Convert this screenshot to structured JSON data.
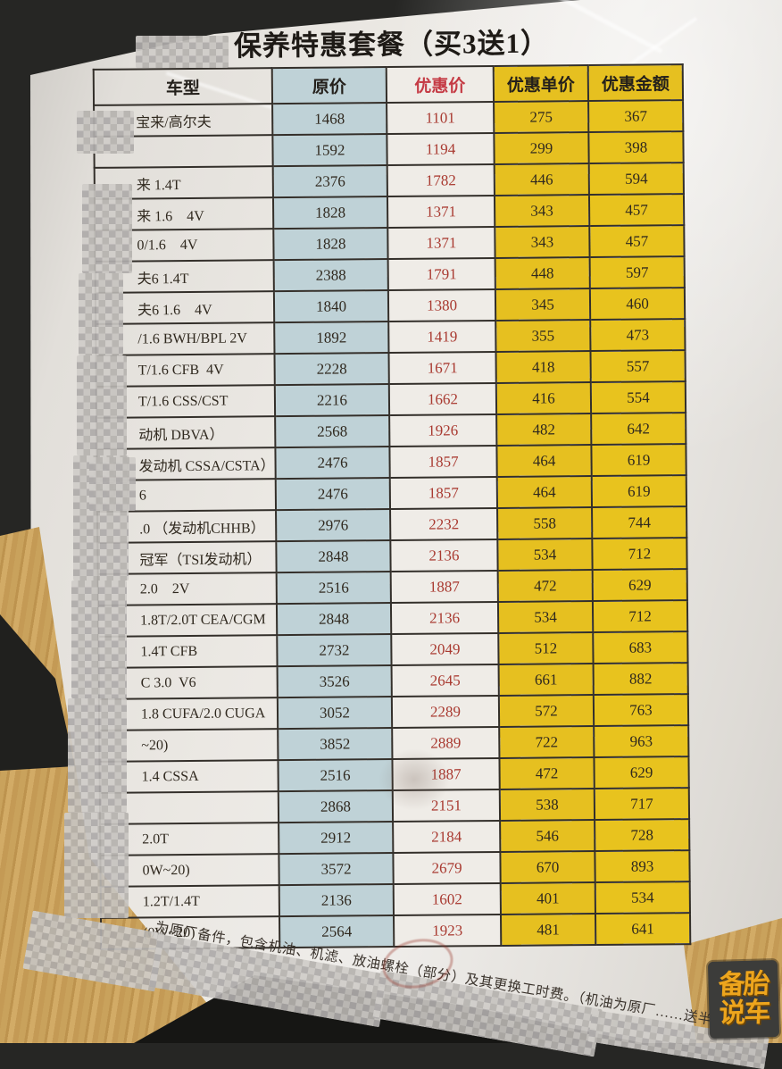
{
  "photo": {
    "title": "保养特惠套餐（买3送1）",
    "columns": [
      "车型",
      "原价",
      "优惠价",
      "优惠单价",
      "优惠金额"
    ],
    "rows": [
      {
        "model": "宝来/高尔夫",
        "orig": "1468",
        "promo": "1101",
        "unit": "275",
        "save": "367"
      },
      {
        "model": "",
        "orig": "1592",
        "promo": "1194",
        "unit": "299",
        "save": "398"
      },
      {
        "model": "来 1.4T",
        "orig": "2376",
        "promo": "1782",
        "unit": "446",
        "save": "594"
      },
      {
        "model": "来 1.6    4V",
        "orig": "1828",
        "promo": "1371",
        "unit": "343",
        "save": "457"
      },
      {
        "model": "0/1.6    4V",
        "orig": "1828",
        "promo": "1371",
        "unit": "343",
        "save": "457"
      },
      {
        "model": "夫6 1.4T",
        "orig": "2388",
        "promo": "1791",
        "unit": "448",
        "save": "597"
      },
      {
        "model": "夫6 1.6    4V",
        "orig": "1840",
        "promo": "1380",
        "unit": "345",
        "save": "460"
      },
      {
        "model": "/1.6 BWH/BPL 2V",
        "orig": "1892",
        "promo": "1419",
        "unit": "355",
        "save": "473"
      },
      {
        "model": "T/1.6 CFB  4V",
        "orig": "2228",
        "promo": "1671",
        "unit": "418",
        "save": "557"
      },
      {
        "model": "T/1.6 CSS/CST",
        "orig": "2216",
        "promo": "1662",
        "unit": "416",
        "save": "554"
      },
      {
        "model": "动机 DBVA）",
        "orig": "2568",
        "promo": "1926",
        "unit": "482",
        "save": "642"
      },
      {
        "model": "发动机 CSSA/CSTA）",
        "orig": "2476",
        "promo": "1857",
        "unit": "464",
        "save": "619"
      },
      {
        "model": "6",
        "orig": "2476",
        "promo": "1857",
        "unit": "464",
        "save": "619"
      },
      {
        "model": ".0 （发动机CHHB）",
        "orig": "2976",
        "promo": "2232",
        "unit": "558",
        "save": "744"
      },
      {
        "model": "冠军（TSI发动机）",
        "orig": "2848",
        "promo": "2136",
        "unit": "534",
        "save": "712"
      },
      {
        "model": "2.0    2V",
        "orig": "2516",
        "promo": "1887",
        "unit": "472",
        "save": "629"
      },
      {
        "model": "1.8T/2.0T CEA/CGM",
        "orig": "2848",
        "promo": "2136",
        "unit": "534",
        "save": "712"
      },
      {
        "model": "1.4T CFB",
        "orig": "2732",
        "promo": "2049",
        "unit": "512",
        "save": "683"
      },
      {
        "model": "C 3.0  V6",
        "orig": "3526",
        "promo": "2645",
        "unit": "661",
        "save": "882"
      },
      {
        "model": "1.8 CUFA/2.0 CUGA",
        "orig": "3052",
        "promo": "2289",
        "unit": "572",
        "save": "763"
      },
      {
        "model": "~20)",
        "orig": "3852",
        "promo": "2889",
        "unit": "722",
        "save": "963"
      },
      {
        "model": "1.4 CSSA",
        "orig": "2516",
        "promo": "1887",
        "unit": "472",
        "save": "629"
      },
      {
        "model": "",
        "orig": "2868",
        "promo": "2151",
        "unit": "538",
        "save": "717"
      },
      {
        "model": "2.0T",
        "orig": "2912",
        "promo": "2184",
        "unit": "546",
        "save": "728"
      },
      {
        "model": "0W~20)",
        "orig": "3572",
        "promo": "2679",
        "unit": "670",
        "save": "893"
      },
      {
        "model": "1.2T/1.4T",
        "orig": "2136",
        "promo": "1602",
        "unit": "401",
        "save": "534"
      },
      {
        "model": "(0W~20)",
        "orig": "2564",
        "promo": "1923",
        "unit": "481",
        "save": "641"
      }
    ],
    "footnote": "为原厂备件，包含机油、机滤、放油螺栓（部分）及其更换工时费。（机油为原厂……送半合成",
    "watermark": {
      "top": "备胎",
      "bottom": "说车"
    },
    "colors": {
      "highlight_yellow": "#e6c020",
      "original_price_blue": "#bfd2d7",
      "promo_red": "#a93a31",
      "paper": "#e9e6e1",
      "logo_orange": "#eda51d"
    }
  }
}
